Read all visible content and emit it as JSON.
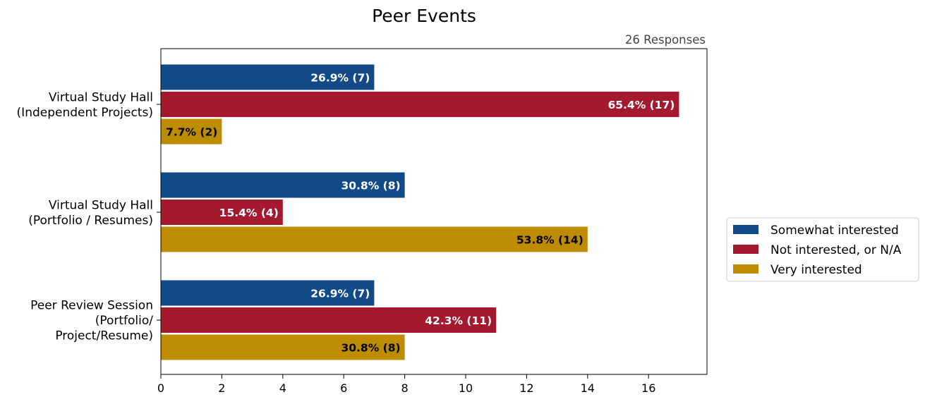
{
  "chart_data": {
    "type": "bar",
    "orientation": "horizontal",
    "title": "Peer Events",
    "subtitle": "26 Responses",
    "xlabel": "",
    "ylabel": "",
    "xlim": [
      0,
      18
    ],
    "xticks": [
      0,
      2,
      4,
      6,
      8,
      10,
      12,
      14,
      16
    ],
    "grid": false,
    "legend_position": "right",
    "categories": [
      [
        "Virtual Study Hall",
        "(Independent Projects)"
      ],
      [
        "Virtual Study Hall",
        "(Portfolio / Resumes)"
      ],
      [
        "Peer Review Session",
        "(Portfolio/",
        "Project/Resume)"
      ]
    ],
    "series": [
      {
        "name": "Somewhat interested",
        "color": "#124a88",
        "label_color": "#ffffff",
        "values": [
          7,
          8,
          7
        ],
        "labels": [
          "26.9% (7)",
          "30.8% (8)",
          "26.9% (7)"
        ]
      },
      {
        "name": "Not interested, or N/A",
        "color": "#a4192d",
        "label_color": "#ffffff",
        "values": [
          17,
          4,
          11
        ],
        "labels": [
          "65.4% (17)",
          "15.4% (4)",
          "42.3% (11)"
        ]
      },
      {
        "name": "Very interested",
        "color": "#bd8c00",
        "label_color": "#000000",
        "values": [
          2,
          14,
          8
        ],
        "labels": [
          "7.7% (2)",
          "53.8% (14)",
          "30.8% (8)"
        ]
      }
    ]
  }
}
